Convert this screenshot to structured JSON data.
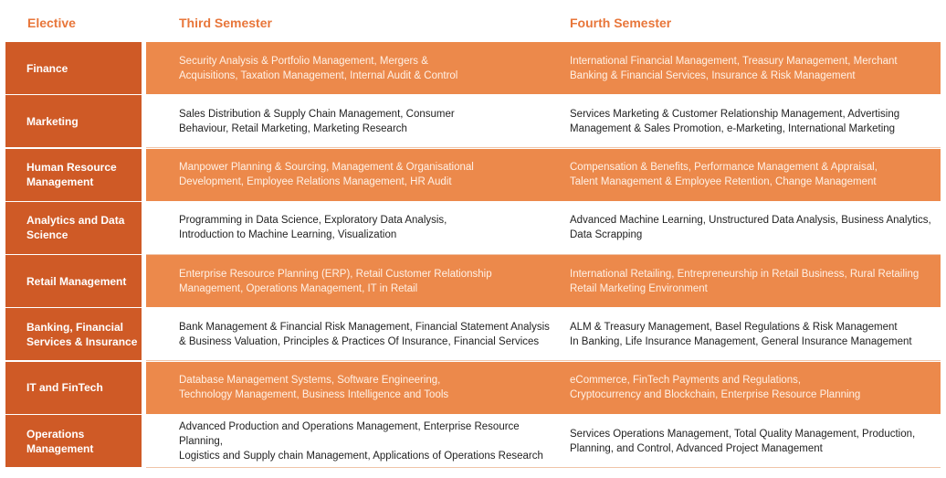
{
  "headers": {
    "elective": "Elective",
    "third": "Third Semester",
    "fourth": "Fourth Semester"
  },
  "rows": [
    {
      "elective": [
        "Finance"
      ],
      "third": [
        "Security Analysis & Portfolio Management, Mergers &",
        "Acquisitions, Taxation Management, Internal Audit & Control"
      ],
      "fourth": [
        "International Financial Management, Treasury Management, Merchant",
        "Banking & Financial Services, Insurance & Risk Management"
      ]
    },
    {
      "elective": [
        "Marketing"
      ],
      "third": [
        "Sales Distribution & Supply Chain Management, Consumer",
        "Behaviour, Retail Marketing, Marketing Research"
      ],
      "fourth": [
        "Services Marketing & Customer Relationship Management, Advertising",
        "Management & Sales Promotion, e-Marketing, International Marketing"
      ]
    },
    {
      "elective": [
        "Human Resource",
        "Management"
      ],
      "third": [
        "Manpower Planning & Sourcing, Management & Organisational",
        "Development, Employee Relations Management, HR Audit"
      ],
      "fourth": [
        "Compensation & Benefits, Performance Management & Appraisal,",
        "Talent Management & Employee Retention, Change Management"
      ]
    },
    {
      "elective": [
        "Analytics and",
        "Data Science"
      ],
      "third": [
        "Programming in Data Science, Exploratory Data Analysis,",
        "Introduction to Machine Learning, Visualization"
      ],
      "fourth": [
        "Advanced Machine Learning, Unstructured Data Analysis, Business Analytics,",
        "Data Scrapping"
      ]
    },
    {
      "elective": [
        "Retail Management"
      ],
      "third": [
        "Enterprise Resource Planning (ERP), Retail Customer Relationship",
        "Management, Operations Management, IT in Retail"
      ],
      "fourth": [
        "International Retailing, Entrepreneurship in Retail Business, Rural Retailing",
        "Retail Marketing Environment"
      ]
    },
    {
      "elective": [
        "Banking, Financial",
        "Services & Insurance"
      ],
      "third": [
        "Bank Management & Financial Risk Management, Financial Statement Analysis",
        "& Business Valuation, Principles & Practices Of Insurance, Financial Services"
      ],
      "fourth": [
        "ALM & Treasury Management, Basel Regulations & Risk Management",
        "In Banking, Life Insurance Management, General Insurance Management"
      ]
    },
    {
      "elective": [
        "IT and FinTech"
      ],
      "third": [
        "Database Management Systems, Software Engineering,",
        "Technology Management, Business Intelligence and Tools"
      ],
      "fourth": [
        "eCommerce, FinTech Payments and Regulations,",
        "Cryptocurrency and Blockchain, Enterprise Resource Planning"
      ]
    },
    {
      "elective": [
        "Operations",
        "Management"
      ],
      "third": [
        "Advanced Production and Operations Management, Enterprise Resource Planning,",
        "Logistics and Supply chain Management, Applications of Operations Research"
      ],
      "fourth": [
        "Services Operations Management, Total Quality Management, Production,",
        "Planning, and Control, Advanced Project Management"
      ]
    }
  ]
}
